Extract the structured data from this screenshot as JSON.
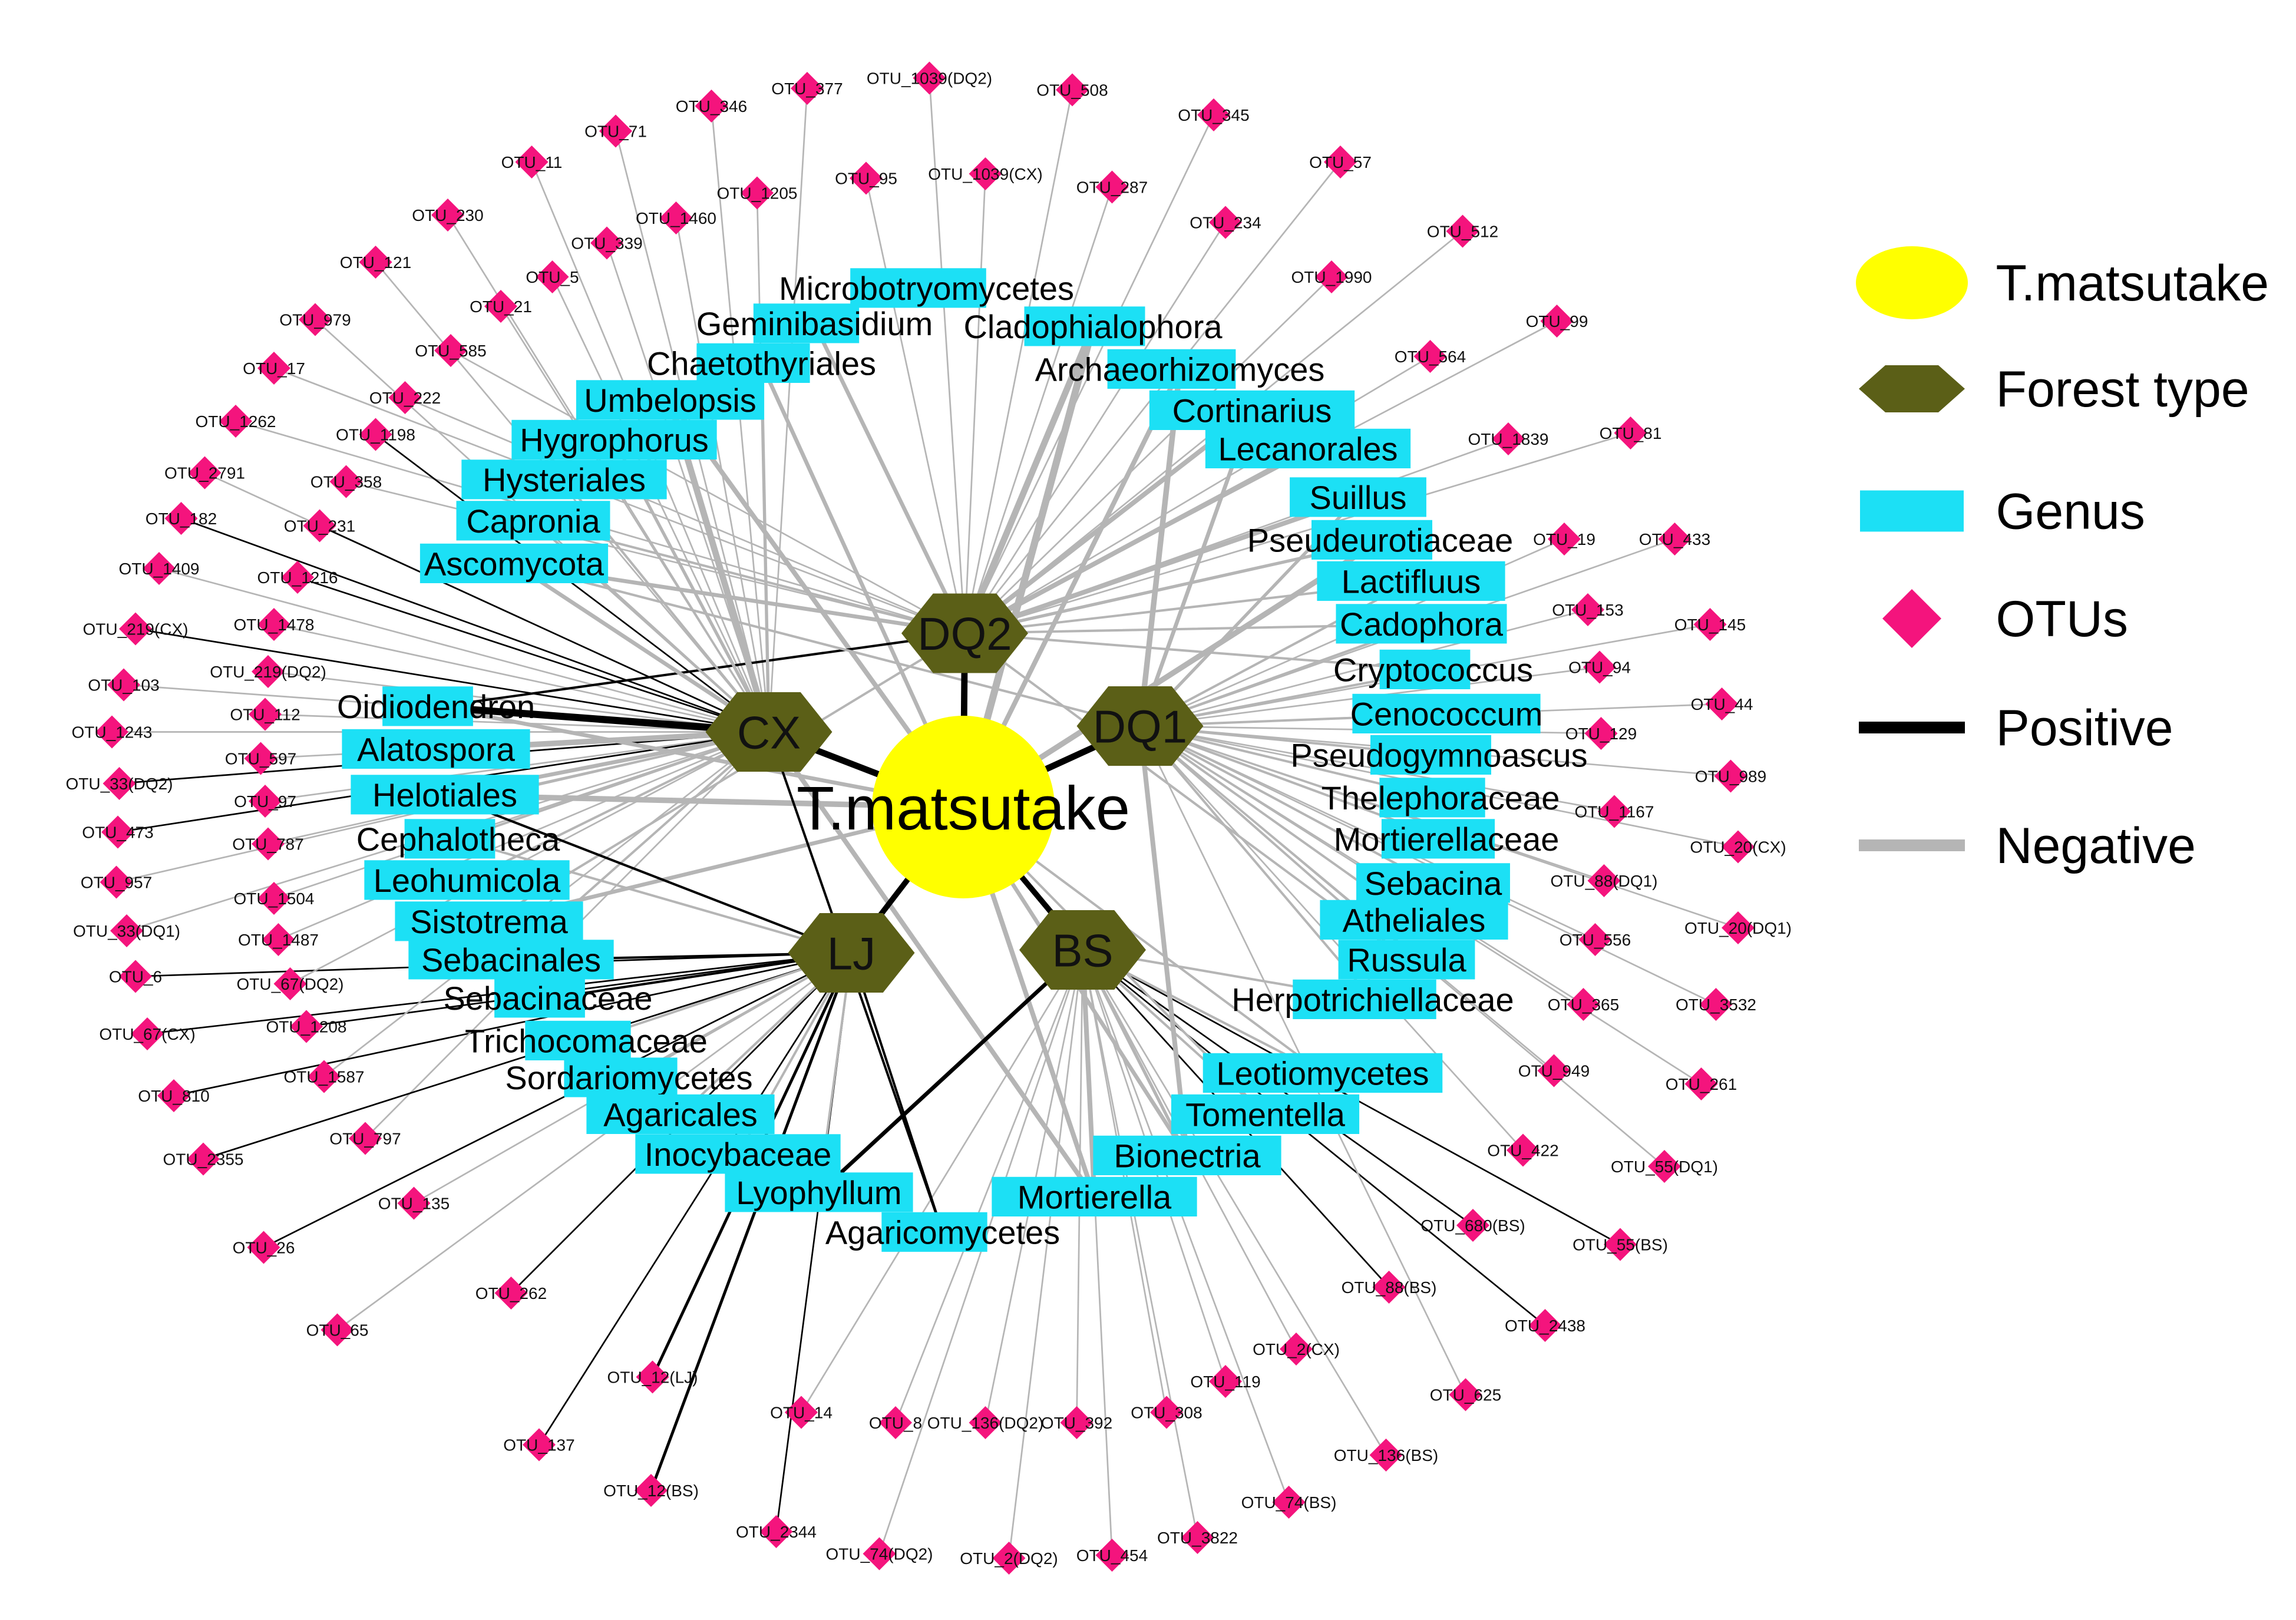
{
  "colors": {
    "core": "#ffff00",
    "forest": "#5b5f17",
    "genus": "#1ce0f5",
    "otu": "#f4147d",
    "positive": "#000000",
    "negative": "#b5b5b5"
  },
  "core": {
    "label": "T.matsutake"
  },
  "legend": [
    {
      "key": "core",
      "label": "T.matsutake",
      "shape": "circle-icon"
    },
    {
      "key": "forest",
      "label": "Forest type",
      "shape": "hexagon-icon"
    },
    {
      "key": "genus",
      "label": "Genus",
      "shape": "rectangle-icon"
    },
    {
      "key": "otu",
      "label": "OTUs",
      "shape": "diamond-icon"
    },
    {
      "key": "positive",
      "label": "Positive",
      "shape": "line-icon"
    },
    {
      "key": "negative",
      "label": "Negative",
      "shape": "line-icon"
    }
  ],
  "forest_types": [
    "DQ2",
    "CX",
    "DQ1",
    "LJ",
    "BS"
  ],
  "genera": [
    "Microbotryomycetes",
    "Geminibasidium",
    "Cladophialophora",
    "Chaetothyriales",
    "Archaeorhizomyces",
    "Umbelopsis",
    "Cortinarius",
    "Hygrophorus",
    "Lecanorales",
    "Hysteriales",
    "Suillus",
    "Capronia",
    "Pseudeurotiaceae",
    "Ascomycota",
    "Lactifluus",
    "Cadophora",
    "Cryptococcus",
    "Oidiodendron",
    "Cenococcum",
    "Alatospora",
    "Pseudogymnoascus",
    "Helotiales",
    "Thelephoraceae",
    "Cephalotheca",
    "Mortierellaceae",
    "Leohumicola",
    "Sebacina",
    "Sistotrema",
    "Atheliales",
    "Sebacinales",
    "Russula",
    "Sebacinaceae",
    "Herpotrichiellaceae",
    "Trichocomaceae",
    "Sordariomycetes",
    "Leotiomycetes",
    "Agaricales",
    "Tomentella",
    "Inocybaceae",
    "Bionectria",
    "Lyophyllum",
    "Mortierella",
    "Agaricomycetes"
  ],
  "otus": [
    "OTU_1039(DQ2)",
    "OTU_377",
    "OTU_346",
    "OTU_508",
    "OTU_71",
    "OTU_345",
    "OTU_11",
    "OTU_1039(CX)",
    "OTU_95",
    "OTU_57",
    "OTU_1205",
    "OTU_287",
    "OTU_230",
    "OTU_1460",
    "OTU_234",
    "OTU_512",
    "OTU_339",
    "OTU_121",
    "OTU_5",
    "OTU_1990",
    "OTU_21",
    "OTU_979",
    "OTU_99",
    "OTU_585",
    "OTU_564",
    "OTU_17",
    "OTU_222",
    "OTU_1262",
    "OTU_1198",
    "OTU_81",
    "OTU_1839",
    "OTU_2791",
    "OTU_358",
    "OTU_182",
    "OTU_231",
    "OTU_19",
    "OTU_433",
    "OTU_1409",
    "OTU_1216",
    "OTU_153",
    "OTU_219(CX)",
    "OTU_1478",
    "OTU_145",
    "OTU_219(DQ2)",
    "OTU_94",
    "OTU_103",
    "OTU_44",
    "OTU_112",
    "OTU_1243",
    "OTU_129",
    "OTU_597",
    "OTU_989",
    "OTU_33(DQ2)",
    "OTU_97",
    "OTU_1167",
    "OTU_473",
    "OTU_787",
    "OTU_20(CX)",
    "OTU_957",
    "OTU_1504",
    "OTU_88(DQ1)",
    "OTU_20(DQ1)",
    "OTU_33(DQ1)",
    "OTU_1487",
    "OTU_556",
    "OTU_6",
    "OTU_67(DQ2)",
    "OTU_365",
    "OTU_3532",
    "OTU_67(CX)",
    "OTU_1208",
    "OTU_949",
    "OTU_1587",
    "OTU_261",
    "OTU_810",
    "OTU_797",
    "OTU_422",
    "OTU_2355",
    "OTU_55(DQ1)",
    "OTU_135",
    "OTU_680(BS)",
    "OTU_55(BS)",
    "OTU_26",
    "OTU_88(BS)",
    "OTU_262",
    "OTU_2438",
    "OTU_65",
    "OTU_2(CX)",
    "OTU_119",
    "OTU_12(LJ)",
    "OTU_625",
    "OTU_14",
    "OTU_8",
    "OTU_136(DQ2)",
    "OTU_392",
    "OTU_308",
    "OTU_137",
    "OTU_136(BS)",
    "OTU_12(BS)",
    "OTU_74(BS)",
    "OTU_2344",
    "OTU_3822",
    "OTU_74(DQ2)",
    "OTU_2(DQ2)",
    "OTU_454"
  ],
  "hub_links": [
    {
      "from": "T.matsutake",
      "to": "DQ2",
      "sign": "positive"
    },
    {
      "from": "T.matsutake",
      "to": "CX",
      "sign": "positive"
    },
    {
      "from": "T.matsutake",
      "to": "DQ1",
      "sign": "positive"
    },
    {
      "from": "T.matsutake",
      "to": "LJ",
      "sign": "positive"
    },
    {
      "from": "T.matsutake",
      "to": "BS",
      "sign": "positive"
    }
  ]
}
